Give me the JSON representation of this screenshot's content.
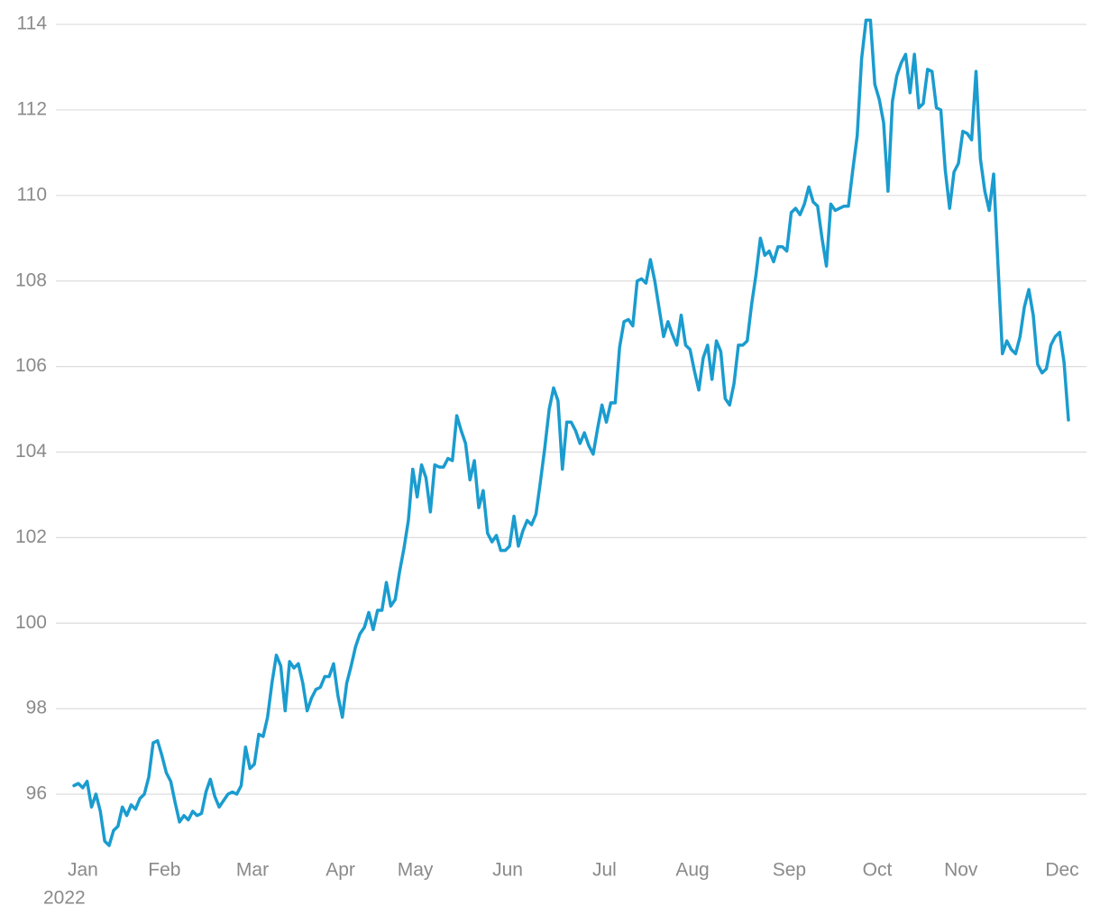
{
  "chart_data": {
    "type": "line",
    "color": "#1a9ccf",
    "ylim": [
      94.6,
      114.4
    ],
    "yticks": [
      96,
      98,
      100,
      102,
      104,
      106,
      108,
      110,
      112,
      114
    ],
    "grid": true,
    "year_label": "2022",
    "categories": [
      "Jan",
      null,
      null,
      null,
      null,
      null,
      null,
      null,
      null,
      null,
      null,
      null,
      null,
      null,
      null,
      null,
      null,
      null,
      null,
      null,
      null,
      null,
      "Feb",
      null,
      null,
      null,
      null,
      null,
      null,
      null,
      null,
      null,
      null,
      null,
      null,
      null,
      null,
      null,
      null,
      null,
      null,
      null,
      "Mar",
      null,
      null,
      null,
      null,
      null,
      null,
      null,
      null,
      null,
      null,
      null,
      null,
      null,
      null,
      null,
      null,
      null,
      null,
      null,
      "Apr",
      null,
      null,
      null,
      null,
      null,
      null,
      null,
      null,
      null,
      null,
      null,
      null,
      null,
      null,
      null,
      null,
      "May",
      null,
      null,
      null,
      null,
      null,
      null,
      null,
      null,
      null,
      null,
      null,
      null,
      null,
      null,
      null,
      null,
      null,
      null,
      null,
      null,
      "Jun",
      null,
      null,
      null,
      null,
      null,
      null,
      null,
      null,
      null,
      null,
      null,
      null,
      null,
      null,
      null,
      null,
      null,
      null,
      null,
      null,
      null,
      "Jul",
      null,
      null,
      null,
      null,
      null,
      null,
      null,
      null,
      null,
      null,
      null,
      null,
      null,
      null,
      null,
      null,
      null,
      null,
      null,
      "Aug",
      null,
      null,
      null,
      null,
      null,
      null,
      null,
      null,
      null,
      null,
      null,
      null,
      null,
      null,
      null,
      null,
      null,
      null,
      null,
      null,
      null,
      "Sep",
      null,
      null,
      null,
      null,
      null,
      null,
      null,
      null,
      null,
      null,
      null,
      null,
      null,
      null,
      null,
      null,
      null,
      null,
      null,
      "Oct",
      null,
      null,
      null,
      null,
      null,
      null,
      null,
      null,
      null,
      null,
      null,
      null,
      null,
      null,
      null,
      null,
      null,
      null,
      "Nov",
      null,
      null,
      null,
      null,
      null,
      null,
      null,
      null,
      null,
      null,
      null,
      null,
      null,
      null,
      null,
      null,
      null,
      null,
      null,
      null,
      null,
      null,
      "Dec"
    ],
    "values": [
      96.2,
      96.25,
      96.15,
      96.3,
      95.7,
      96.0,
      95.6,
      94.9,
      94.8,
      95.15,
      95.25,
      95.7,
      95.5,
      95.75,
      95.65,
      95.9,
      96.0,
      96.4,
      97.2,
      97.25,
      96.9,
      96.5,
      96.3,
      95.8,
      95.35,
      95.5,
      95.4,
      95.6,
      95.5,
      95.55,
      96.05,
      96.35,
      95.95,
      95.7,
      95.85,
      96.0,
      96.05,
      96.0,
      96.2,
      97.1,
      96.6,
      96.7,
      97.4,
      97.35,
      97.8,
      98.6,
      99.25,
      99.0,
      97.95,
      99.1,
      98.95,
      99.05,
      98.6,
      97.95,
      98.25,
      98.45,
      98.5,
      98.75,
      98.75,
      99.05,
      98.3,
      97.8,
      98.6,
      99.0,
      99.45,
      99.75,
      99.9,
      100.25,
      99.85,
      100.3,
      100.3,
      100.95,
      100.4,
      100.55,
      101.2,
      101.75,
      102.4,
      103.6,
      102.95,
      103.7,
      103.4,
      102.6,
      103.7,
      103.65,
      103.65,
      103.85,
      103.8,
      104.85,
      104.5,
      104.2,
      103.35,
      103.8,
      102.7,
      103.1,
      102.1,
      101.9,
      102.05,
      101.7,
      101.7,
      101.8,
      102.5,
      101.8,
      102.15,
      102.4,
      102.3,
      102.55,
      103.3,
      104.1,
      105.0,
      105.5,
      105.2,
      103.6,
      104.7,
      104.7,
      104.5,
      104.2,
      104.45,
      104.15,
      103.95,
      104.55,
      105.1,
      104.7,
      105.15,
      105.15,
      106.45,
      107.05,
      107.1,
      106.95,
      108.0,
      108.05,
      107.95,
      108.5,
      108.0,
      107.35,
      106.7,
      107.05,
      106.75,
      106.5,
      107.2,
      106.5,
      106.4,
      105.9,
      105.45,
      106.2,
      106.5,
      105.7,
      106.6,
      106.35,
      105.25,
      105.1,
      105.6,
      106.5,
      106.5,
      106.6,
      107.45,
      108.15,
      109.0,
      108.6,
      108.7,
      108.45,
      108.8,
      108.8,
      108.7,
      109.6,
      109.7,
      109.55,
      109.8,
      110.2,
      109.85,
      109.75,
      109.0,
      108.35,
      109.8,
      109.65,
      109.7,
      109.75,
      109.75,
      110.6,
      111.4,
      113.2,
      114.1,
      114.1,
      112.6,
      112.25,
      111.7,
      110.1,
      112.2,
      112.8,
      113.1,
      113.3,
      112.4,
      113.3,
      112.05,
      112.15,
      112.95,
      112.9,
      112.05,
      112.0,
      110.6,
      109.7,
      110.55,
      110.75,
      111.5,
      111.45,
      111.3,
      112.9,
      110.85,
      110.1,
      109.65,
      110.5,
      108.35,
      106.3,
      106.6,
      106.4,
      106.3,
      106.7,
      107.4,
      107.8,
      107.2,
      106.05,
      105.85,
      105.95,
      106.5,
      106.7,
      106.8,
      106.1,
      104.75
    ]
  }
}
